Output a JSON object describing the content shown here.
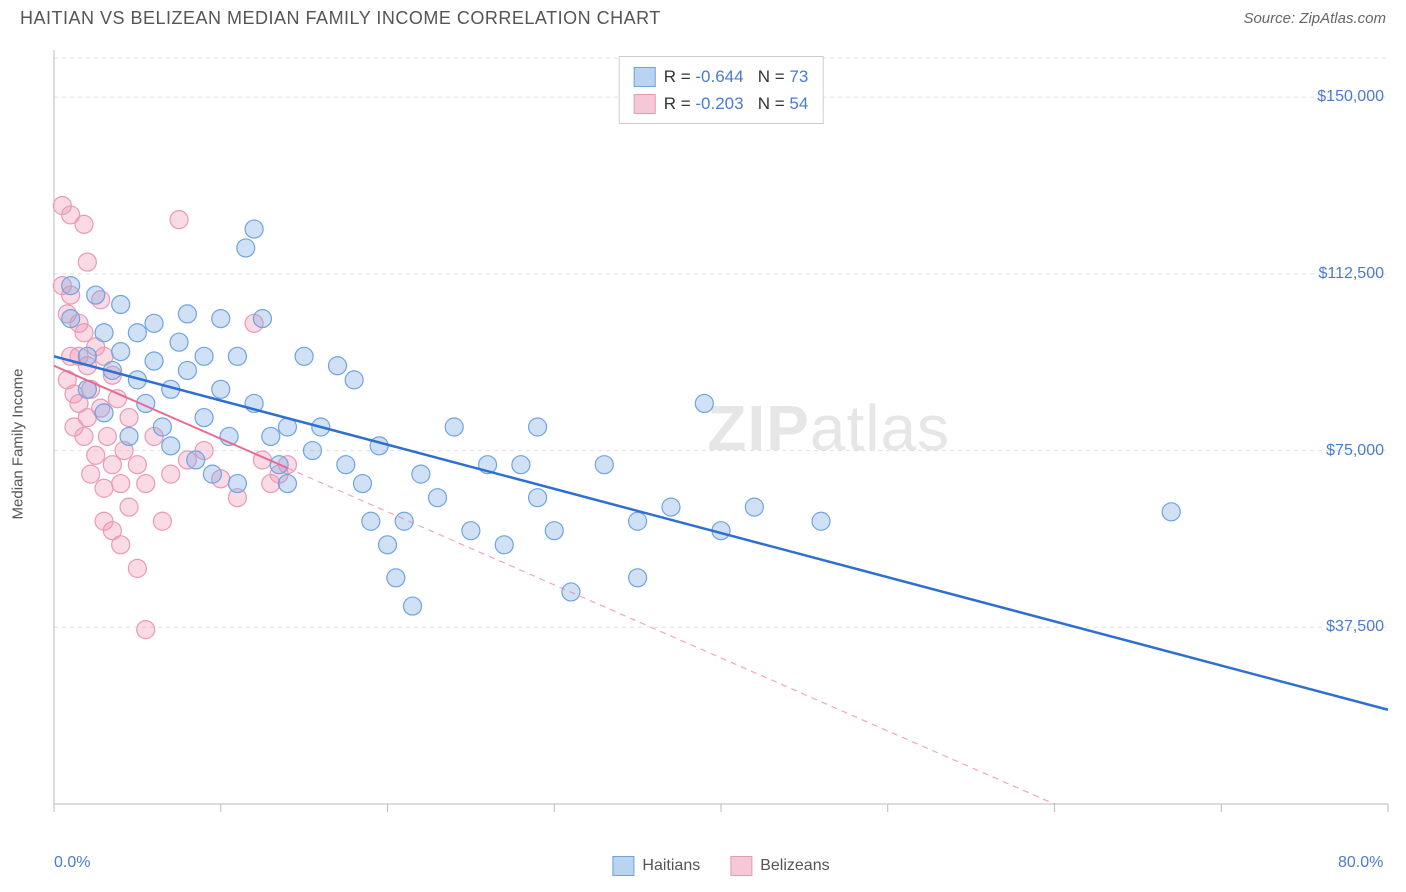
{
  "header": {
    "title": "HAITIAN VS BELIZEAN MEDIAN FAMILY INCOME CORRELATION CHART",
    "source_label": "Source: ZipAtlas.com"
  },
  "chart": {
    "type": "scatter",
    "ylabel": "Median Family Income",
    "xlim": [
      0,
      80
    ],
    "ylim": [
      0,
      160000
    ],
    "xtick_labels": {
      "min": "0.0%",
      "max": "80.0%"
    },
    "ytick_values": [
      37500,
      75000,
      112500,
      150000
    ],
    "ytick_labels": [
      "$37,500",
      "$75,000",
      "$112,500",
      "$150,000"
    ],
    "xtick_positions": [
      0,
      10,
      20,
      30,
      40,
      50,
      60,
      70,
      80
    ],
    "grid_color": "#e0e0e0",
    "grid_dash": "4,4",
    "axis_color": "#bbbbbb",
    "background_color": "#ffffff",
    "watermark_text": "ZIPatlas",
    "series": [
      {
        "name": "Haitians",
        "marker_color_fill": "rgba(120,170,230,0.35)",
        "marker_color_stroke": "#6fa3e0",
        "marker_radius": 9,
        "trend_color": "#2f6fd0",
        "trend_width": 2.5,
        "trend_solid_until": 80,
        "R": "-0.644",
        "N": "73",
        "trend": {
          "x0": 0,
          "y0": 95000,
          "x1": 80,
          "y1": 20000
        },
        "points": [
          [
            1,
            110000
          ],
          [
            1,
            103000
          ],
          [
            2,
            88000
          ],
          [
            2,
            95000
          ],
          [
            2.5,
            108000
          ],
          [
            3,
            100000
          ],
          [
            3,
            83000
          ],
          [
            3.5,
            92000
          ],
          [
            4,
            106000
          ],
          [
            4,
            96000
          ],
          [
            4.5,
            78000
          ],
          [
            5,
            100000
          ],
          [
            5,
            90000
          ],
          [
            5.5,
            85000
          ],
          [
            6,
            102000
          ],
          [
            6,
            94000
          ],
          [
            6.5,
            80000
          ],
          [
            7,
            88000
          ],
          [
            7,
            76000
          ],
          [
            7.5,
            98000
          ],
          [
            8,
            104000
          ],
          [
            8,
            92000
          ],
          [
            8.5,
            73000
          ],
          [
            9,
            95000
          ],
          [
            9,
            82000
          ],
          [
            9.5,
            70000
          ],
          [
            10,
            103000
          ],
          [
            10,
            88000
          ],
          [
            10.5,
            78000
          ],
          [
            11,
            95000
          ],
          [
            11,
            68000
          ],
          [
            11.5,
            118000
          ],
          [
            12,
            122000
          ],
          [
            12,
            85000
          ],
          [
            12.5,
            103000
          ],
          [
            13,
            78000
          ],
          [
            13.5,
            72000
          ],
          [
            14,
            80000
          ],
          [
            14,
            68000
          ],
          [
            15,
            95000
          ],
          [
            15.5,
            75000
          ],
          [
            16,
            80000
          ],
          [
            17,
            93000
          ],
          [
            17.5,
            72000
          ],
          [
            18,
            90000
          ],
          [
            18.5,
            68000
          ],
          [
            19,
            60000
          ],
          [
            19.5,
            76000
          ],
          [
            20,
            55000
          ],
          [
            20.5,
            48000
          ],
          [
            21,
            60000
          ],
          [
            21.5,
            42000
          ],
          [
            22,
            70000
          ],
          [
            23,
            65000
          ],
          [
            24,
            80000
          ],
          [
            25,
            58000
          ],
          [
            26,
            72000
          ],
          [
            27,
            55000
          ],
          [
            28,
            72000
          ],
          [
            29,
            80000
          ],
          [
            29,
            65000
          ],
          [
            30,
            58000
          ],
          [
            31,
            45000
          ],
          [
            33,
            72000
          ],
          [
            35,
            60000
          ],
          [
            35,
            48000
          ],
          [
            37,
            63000
          ],
          [
            39,
            85000
          ],
          [
            40,
            58000
          ],
          [
            42,
            63000
          ],
          [
            46,
            60000
          ],
          [
            67,
            62000
          ]
        ]
      },
      {
        "name": "Belizeans",
        "marker_color_fill": "rgba(240,150,180,0.35)",
        "marker_color_stroke": "#e89ab5",
        "marker_radius": 9,
        "trend_color": "#e86b94",
        "trend_width": 2,
        "trend_solid_until": 14,
        "trend_dash": "6,5",
        "R": "-0.203",
        "N": "54",
        "trend": {
          "x0": 0,
          "y0": 93000,
          "x1": 60,
          "y1": 0
        },
        "points": [
          [
            0.5,
            127000
          ],
          [
            0.5,
            110000
          ],
          [
            0.8,
            104000
          ],
          [
            0.8,
            90000
          ],
          [
            1,
            125000
          ],
          [
            1,
            108000
          ],
          [
            1,
            95000
          ],
          [
            1.2,
            87000
          ],
          [
            1.2,
            80000
          ],
          [
            1.5,
            102000
          ],
          [
            1.5,
            95000
          ],
          [
            1.5,
            85000
          ],
          [
            1.8,
            123000
          ],
          [
            1.8,
            100000
          ],
          [
            1.8,
            78000
          ],
          [
            2,
            115000
          ],
          [
            2,
            93000
          ],
          [
            2,
            82000
          ],
          [
            2.2,
            70000
          ],
          [
            2.2,
            88000
          ],
          [
            2.5,
            97000
          ],
          [
            2.5,
            74000
          ],
          [
            2.8,
            107000
          ],
          [
            2.8,
            84000
          ],
          [
            3,
            95000
          ],
          [
            3,
            67000
          ],
          [
            3,
            60000
          ],
          [
            3.2,
            78000
          ],
          [
            3.5,
            91000
          ],
          [
            3.5,
            72000
          ],
          [
            3.5,
            58000
          ],
          [
            3.8,
            86000
          ],
          [
            4,
            68000
          ],
          [
            4,
            55000
          ],
          [
            4.2,
            75000
          ],
          [
            4.5,
            82000
          ],
          [
            4.5,
            63000
          ],
          [
            5,
            72000
          ],
          [
            5,
            50000
          ],
          [
            5.5,
            68000
          ],
          [
            5.5,
            37000
          ],
          [
            6,
            78000
          ],
          [
            6.5,
            60000
          ],
          [
            7,
            70000
          ],
          [
            7.5,
            124000
          ],
          [
            8,
            73000
          ],
          [
            9,
            75000
          ],
          [
            10,
            69000
          ],
          [
            11,
            65000
          ],
          [
            12,
            102000
          ],
          [
            12.5,
            73000
          ],
          [
            13,
            68000
          ],
          [
            13.5,
            70000
          ],
          [
            14,
            72000
          ]
        ]
      }
    ],
    "top_legend": {
      "swatch_blue_fill": "#b8d4f0",
      "swatch_blue_stroke": "#6fa3e0",
      "swatch_pink_fill": "#f5c8d8",
      "swatch_pink_stroke": "#e89ab5"
    },
    "bottom_legend_labels": [
      "Haitians",
      "Belizeans"
    ]
  }
}
